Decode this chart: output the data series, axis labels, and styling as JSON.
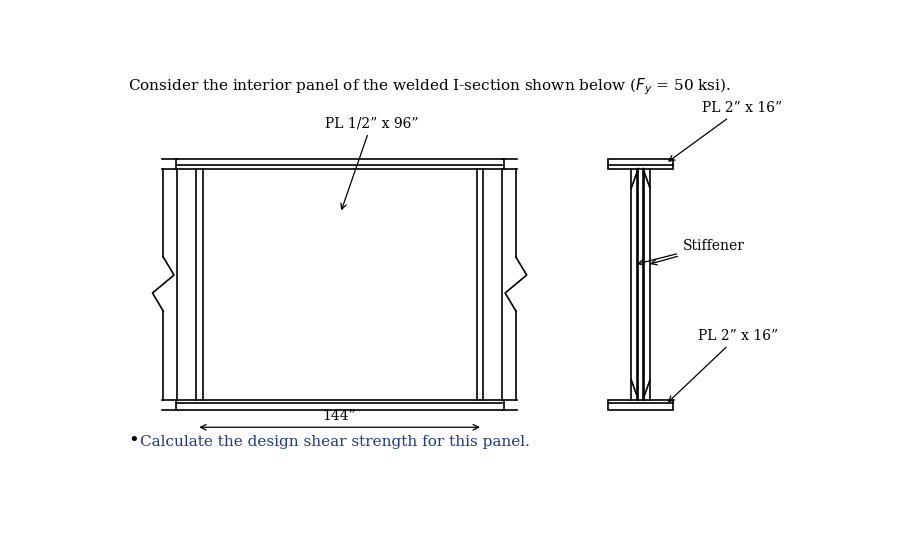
{
  "label_web": "PL 1/2” x 96”",
  "label_flange_top": "PL 2” x 16”",
  "label_flange_bot": "PL 2” x 16”",
  "label_stiffener": "Stiffener",
  "label_dim": "144”",
  "label_bullet": "Calculate the design shear strength for this panel.",
  "bg_color": "#ffffff",
  "line_color": "#000000",
  "text_color": "#000000",
  "blue_text_color": "#1a3a8a",
  "font_size_title": 11,
  "font_size_labels": 10,
  "font_size_dim": 10,
  "font_size_bullet": 11,
  "lw_main": 1.2
}
